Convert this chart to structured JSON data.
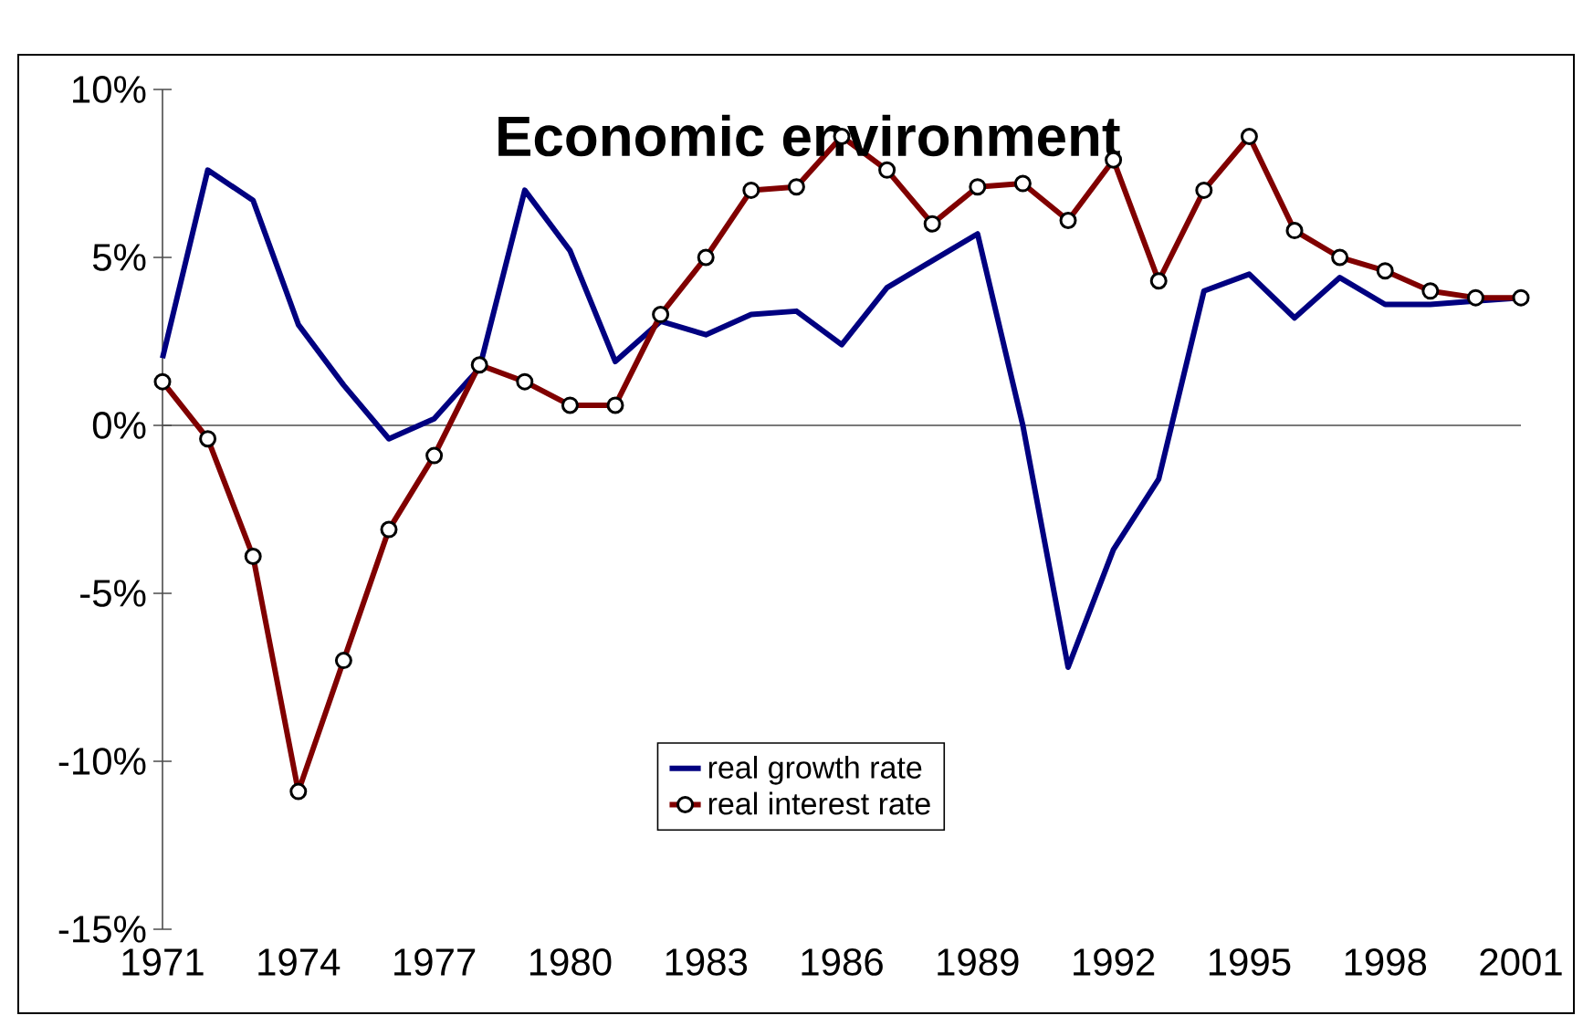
{
  "chart_data": {
    "type": "line",
    "title": "Economic environment",
    "categories": [
      "1971",
      null,
      null,
      "1974",
      null,
      null,
      "1977",
      null,
      null,
      "1980",
      null,
      null,
      "1983",
      null,
      null,
      "1986",
      null,
      null,
      "1989",
      null,
      null,
      "1992",
      null,
      null,
      "1995",
      null,
      null,
      "1998",
      null,
      null,
      "2001"
    ],
    "ylim": [
      -15,
      10
    ],
    "yticks": [
      {
        "value": -15,
        "label": "-15%"
      },
      {
        "value": -10,
        "label": "-10%"
      },
      {
        "value": -5,
        "label": "-5%"
      },
      {
        "value": 0,
        "label": "0%"
      },
      {
        "value": 5,
        "label": "5%"
      },
      {
        "value": 10,
        "label": "10%"
      }
    ],
    "legend": "bottom",
    "series": [
      {
        "name": "real growth rate",
        "color": "#000080",
        "marker": "none",
        "values": [
          2.0,
          7.6,
          6.7,
          3.0,
          1.2,
          -0.4,
          0.2,
          1.7,
          7.0,
          5.2,
          1.9,
          3.1,
          2.7,
          3.3,
          3.4,
          2.4,
          4.1,
          4.9,
          5.7,
          0.0,
          -7.2,
          -3.7,
          -1.6,
          4.0,
          4.5,
          3.2,
          4.4,
          3.6,
          3.6,
          3.7,
          3.8
        ]
      },
      {
        "name": "real interest rate",
        "color": "#800000",
        "marker": "circle",
        "values": [
          1.3,
          -0.4,
          -3.9,
          -10.9,
          -7.0,
          -3.1,
          -0.9,
          1.8,
          1.3,
          0.6,
          0.6,
          3.3,
          5.0,
          7.0,
          7.1,
          8.6,
          7.6,
          6.0,
          7.1,
          7.2,
          6.1,
          7.9,
          4.3,
          7.0,
          8.6,
          5.8,
          5.0,
          4.6,
          4.0,
          3.8,
          3.8
        ]
      }
    ]
  }
}
